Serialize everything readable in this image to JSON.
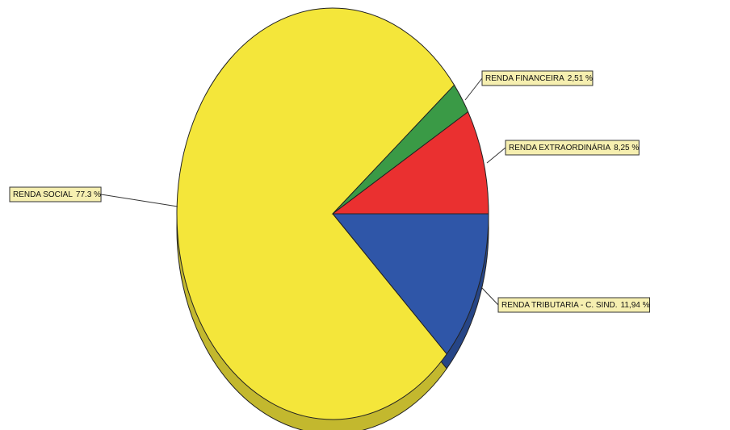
{
  "chart_data": {
    "type": "pie",
    "categories": [
      "RENDA TRIBUTARIA - C. SIND.",
      "RENDA SOCIAL",
      "RENDA FINANCEIRA",
      "RENDA EXTRAORDINÁRIA"
    ],
    "values": [
      11.94,
      77.3,
      2.51,
      8.25
    ],
    "value_labels": [
      "11,94 %",
      "77.3 %",
      "2,51 %",
      "8,25 %"
    ],
    "colors": [
      "#2f56a8",
      "#f4e63a",
      "#3a9a46",
      "#ea3030"
    ]
  }
}
